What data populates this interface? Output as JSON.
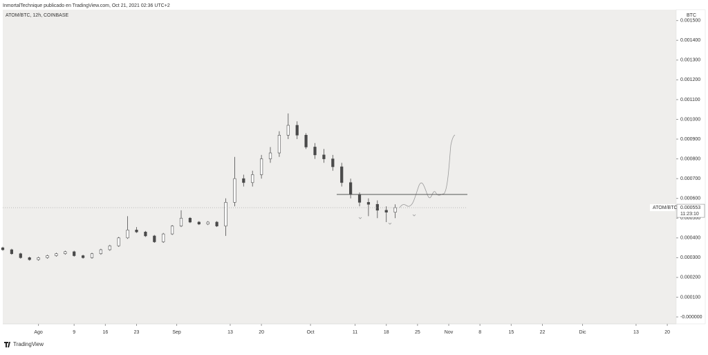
{
  "header": "InmortalTechnique publicado en TradingView.com, Oct 21, 2021 02:36 UTC+2",
  "footer": "TradingView",
  "chart_data": {
    "type": "candlestick",
    "title": "ATOM/BTC, 12h, COINBASE",
    "y_unit": "BTC",
    "symbol_label": "ATOM/BTC",
    "last_price": {
      "value": 0.000553,
      "label": "0.000553"
    },
    "countdown": "11:23:10",
    "resistance": 0.00062,
    "up_color": "#ffffff",
    "down_color": "#4a4a4a",
    "grid": false,
    "xlim": [
      205,
      356
    ],
    "ylim": [
      -3.5e-05,
      0.001555
    ],
    "xticks": [
      {
        "value": 213,
        "label": "Ago"
      },
      {
        "value": 221,
        "label": "9"
      },
      {
        "value": 228,
        "label": "16"
      },
      {
        "value": 235,
        "label": "23"
      },
      {
        "value": 244,
        "label": "Sep"
      },
      {
        "value": 256,
        "label": "13"
      },
      {
        "value": 263,
        "label": "20"
      },
      {
        "value": 274,
        "label": "Oct"
      },
      {
        "value": 284,
        "label": "11"
      },
      {
        "value": 291,
        "label": "18"
      },
      {
        "value": 298,
        "label": "25"
      },
      {
        "value": 305,
        "label": "Nov"
      },
      {
        "value": 312,
        "label": "8"
      },
      {
        "value": 319,
        "label": "15"
      },
      {
        "value": 326,
        "label": "22"
      },
      {
        "value": 335,
        "label": "Dic"
      },
      {
        "value": 347,
        "label": "13"
      },
      {
        "value": 354,
        "label": "20"
      }
    ],
    "yticks": [
      {
        "value": 0,
        "label": "-0.000000"
      },
      {
        "value": 0.0001,
        "label": "0.000100"
      },
      {
        "value": 0.0002,
        "label": "0.000200"
      },
      {
        "value": 0.0003,
        "label": "0.000300"
      },
      {
        "value": 0.0004,
        "label": "0.000400"
      },
      {
        "value": 0.0005,
        "label": "0.000500"
      },
      {
        "value": 0.0006,
        "label": "0.000600"
      },
      {
        "value": 0.0007,
        "label": "0.000700"
      },
      {
        "value": 0.0008,
        "label": "0.000800"
      },
      {
        "value": 0.0009,
        "label": "0.000900"
      },
      {
        "value": 0.001,
        "label": "0.001000"
      },
      {
        "value": 0.0011,
        "label": "0.001100"
      },
      {
        "value": 0.0012,
        "label": "0.001200"
      },
      {
        "value": 0.0013,
        "label": "0.001300"
      },
      {
        "value": 0.0014,
        "label": "0.001400"
      },
      {
        "value": 0.0015,
        "label": "0.001500"
      }
    ],
    "candles": {
      "x": [
        205,
        207,
        209,
        211,
        213,
        215,
        217,
        219,
        221,
        223,
        225,
        227,
        229,
        231,
        233,
        235,
        237,
        239,
        241,
        243,
        245,
        247,
        249,
        251,
        253,
        255,
        257,
        259,
        261,
        263,
        265,
        267,
        269,
        271,
        273,
        275,
        277,
        279,
        281,
        283,
        285,
        287,
        289,
        291,
        293
      ],
      "open": [
        0.00035,
        0.00034,
        0.00032,
        0.0003,
        0.00029,
        0.0003,
        0.00031,
        0.00032,
        0.00033,
        0.00031,
        0.0003,
        0.00032,
        0.00034,
        0.00036,
        0.0004,
        0.00044,
        0.00043,
        0.00041,
        0.00038,
        0.00042,
        0.00046,
        0.0005,
        0.00048,
        0.00047,
        0.00048,
        0.00046,
        0.00058,
        0.0007,
        0.00068,
        0.00072,
        0.0008,
        0.00083,
        0.00092,
        0.00097,
        0.00092,
        0.00086,
        0.00082,
        0.0008,
        0.00076,
        0.00068,
        0.00062,
        0.00058,
        0.00057,
        0.00054,
        0.00053
      ],
      "high": [
        0.000355,
        0.000345,
        0.000325,
        0.000305,
        0.000305,
        0.000315,
        0.000325,
        0.000335,
        0.000335,
        0.000315,
        0.000325,
        0.000345,
        0.000365,
        0.000405,
        0.00051,
        0.000455,
        0.000435,
        0.000415,
        0.000425,
        0.000465,
        0.00054,
        0.000505,
        0.000485,
        0.000485,
        0.000485,
        0.0006,
        0.00081,
        0.00072,
        0.00074,
        0.00082,
        0.00086,
        0.00094,
        0.00103,
        0.00099,
        0.00093,
        0.00088,
        0.00085,
        0.00082,
        0.00078,
        0.0007,
        0.00063,
        0.0006,
        0.00059,
        0.00056,
        0.00057
      ],
      "low": [
        0.000335,
        0.000315,
        0.000295,
        0.000285,
        0.000285,
        0.000295,
        0.000305,
        0.000315,
        0.000305,
        0.000295,
        0.000295,
        0.000315,
        0.000335,
        0.000355,
        0.000395,
        0.000425,
        0.000405,
        0.000375,
        0.000375,
        0.000415,
        0.000455,
        0.000475,
        0.000465,
        0.000465,
        0.000455,
        0.00041,
        0.00056,
        0.00066,
        0.00066,
        0.0007,
        0.00078,
        0.00081,
        0.0009,
        0.0009,
        0.00085,
        0.0008,
        0.00078,
        0.00074,
        0.00066,
        0.0006,
        0.00056,
        0.00051,
        0.0005,
        0.00048,
        0.0005
      ],
      "close": [
        0.00034,
        0.00032,
        0.0003,
        0.00029,
        0.0003,
        0.00031,
        0.00032,
        0.00033,
        0.00031,
        0.0003,
        0.00032,
        0.00034,
        0.00036,
        0.0004,
        0.00044,
        0.00043,
        0.00041,
        0.00038,
        0.00042,
        0.00046,
        0.0005,
        0.00048,
        0.00047,
        0.00048,
        0.00046,
        0.00058,
        0.0007,
        0.00068,
        0.00072,
        0.0008,
        0.00083,
        0.00092,
        0.00097,
        0.00092,
        0.00086,
        0.00082,
        0.0008,
        0.00076,
        0.00068,
        0.00062,
        0.00058,
        0.00057,
        0.00054,
        0.00053,
        0.000553
      ]
    }
  }
}
